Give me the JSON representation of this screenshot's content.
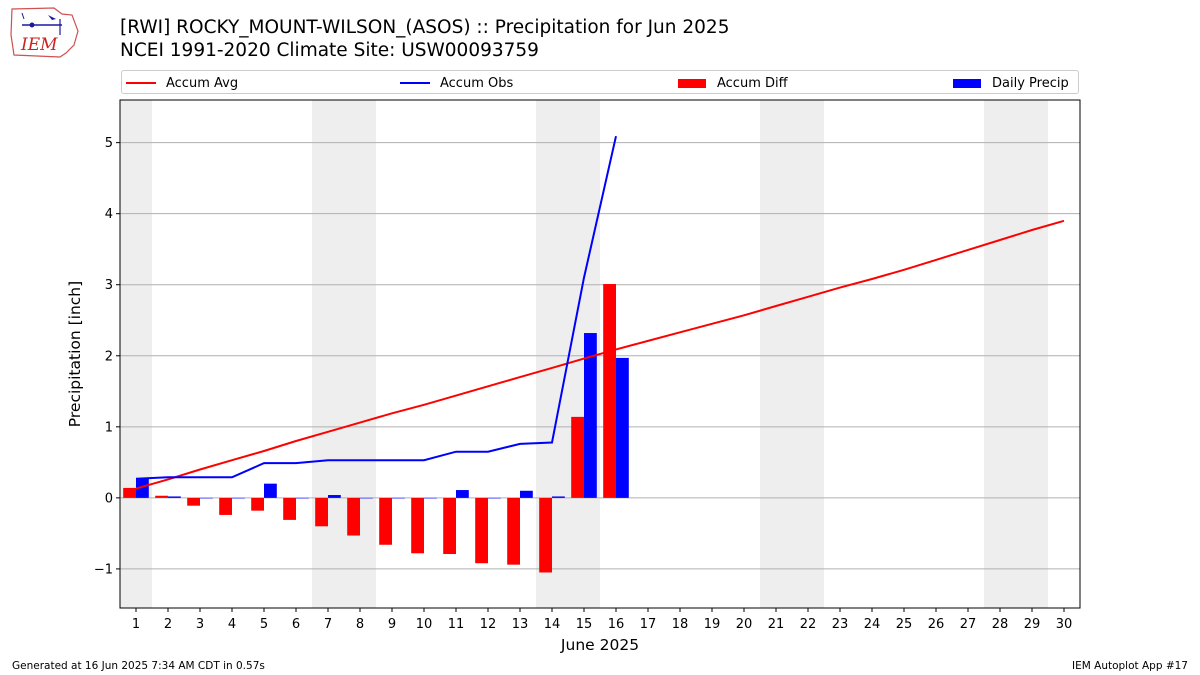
{
  "header": {
    "logo_text": "IEM",
    "title": "[RWI] ROCKY_MOUNT-WILSON_(ASOS) :: Precipitation for Jun 2025",
    "subtitle": "NCEI 1991-2020 Climate Site: USW00093759"
  },
  "legend": {
    "accum_avg": "Accum Avg",
    "accum_obs": "Accum Obs",
    "accum_diff": "Accum Diff",
    "daily_precip": "Daily Precip"
  },
  "footer": {
    "generated": "Generated at 16 Jun 2025 7:34 AM CDT in 0.57s",
    "app": "IEM Autoplot App #17"
  },
  "colors": {
    "avg": "#ff0000",
    "obs": "#0000ff",
    "diff": "#ff0000",
    "daily": "#0000ff",
    "weekend_shade": "#eeeeee",
    "grid": "#b0b0b0"
  },
  "chart_data": {
    "type": "bar",
    "xlabel": "June 2025",
    "ylabel": "Precipitation [inch]",
    "xlim": [
      0.5,
      30.5
    ],
    "ylim": [
      -1.55,
      5.6
    ],
    "grid": "horizontal",
    "legend_position": "top",
    "x_ticks": [
      1,
      2,
      3,
      4,
      5,
      6,
      7,
      8,
      9,
      10,
      11,
      12,
      13,
      14,
      15,
      16,
      17,
      18,
      19,
      20,
      21,
      22,
      23,
      24,
      25,
      26,
      27,
      28,
      29,
      30
    ],
    "y_ticks": [
      -1,
      0,
      1,
      2,
      3,
      4,
      5
    ],
    "y_tick_labels": [
      "−1",
      "0",
      "1",
      "2",
      "3",
      "4",
      "5"
    ],
    "shaded_days": [
      [
        1,
        1
      ],
      [
        7,
        8
      ],
      [
        14,
        15
      ],
      [
        21,
        22
      ],
      [
        28,
        29
      ]
    ],
    "series": [
      {
        "name": "Accum Avg",
        "type": "line",
        "x": [
          1,
          2,
          3,
          4,
          5,
          6,
          7,
          8,
          9,
          10,
          11,
          12,
          13,
          14,
          15,
          16,
          17,
          18,
          19,
          20,
          21,
          22,
          23,
          24,
          25,
          26,
          27,
          28,
          29,
          30
        ],
        "values": [
          0.13,
          0.26,
          0.4,
          0.53,
          0.66,
          0.8,
          0.93,
          1.06,
          1.19,
          1.31,
          1.44,
          1.57,
          1.7,
          1.83,
          1.96,
          2.09,
          2.21,
          2.33,
          2.45,
          2.57,
          2.7,
          2.83,
          2.96,
          3.08,
          3.21,
          3.35,
          3.49,
          3.63,
          3.77,
          3.9
        ]
      },
      {
        "name": "Accum Obs",
        "type": "line",
        "x": [
          1,
          2,
          3,
          4,
          5,
          6,
          7,
          8,
          9,
          10,
          11,
          12,
          13,
          14,
          15,
          16
        ],
        "values": [
          0.27,
          0.29,
          0.29,
          0.29,
          0.49,
          0.49,
          0.53,
          0.53,
          0.53,
          0.53,
          0.65,
          0.65,
          0.76,
          0.78,
          3.1,
          5.09
        ]
      },
      {
        "name": "Accum Diff",
        "type": "bar",
        "x": [
          1,
          2,
          3,
          4,
          5,
          6,
          7,
          8,
          9,
          10,
          11,
          12,
          13,
          14,
          15,
          16
        ],
        "values": [
          0.14,
          0.03,
          -0.11,
          -0.24,
          -0.18,
          -0.31,
          -0.4,
          -0.53,
          -0.66,
          -0.78,
          -0.79,
          -0.92,
          -0.94,
          -1.05,
          1.14,
          3.01
        ]
      },
      {
        "name": "Daily Precip",
        "type": "bar",
        "x": [
          1,
          2,
          3,
          4,
          5,
          6,
          7,
          8,
          9,
          10,
          11,
          12,
          13,
          14,
          15,
          16
        ],
        "values": [
          0.27,
          0.02,
          0.0,
          0.0,
          0.2,
          0.0,
          0.04,
          0.0,
          0.0,
          0.0,
          0.11,
          0.0,
          0.1,
          0.02,
          2.32,
          1.97
        ]
      }
    ]
  }
}
